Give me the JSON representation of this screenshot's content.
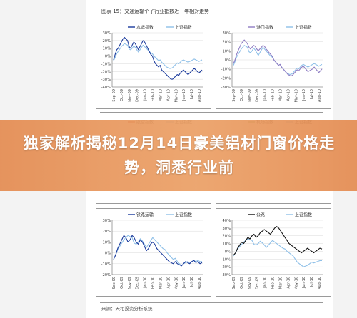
{
  "figure_title": "图表 15：交通运输个子行业指数近一年相对走势",
  "source_text": "来源：天相投资分析系统",
  "headline": "独家解析揭秘12月14日豪美铝材门窗价格走势，洞悉行业前",
  "colors": {
    "benchmark": "#8fc0e8",
    "grid": "#d9d9d9",
    "axis": "#666666"
  },
  "chart_data": [
    {
      "type": "line",
      "yticks": [
        "30%",
        "20%",
        "10%",
        "0%",
        "-10%",
        "-20%",
        "-30%",
        "-40%"
      ],
      "ylim": [
        -40,
        30
      ],
      "xticks": [
        "Sep-09",
        "Oct-09",
        "Nov-09",
        "Dec-09",
        "Jan-10",
        "Feb-10",
        "Mar-10",
        "Apr-10",
        "May-10",
        "Jun-10",
        "Jul-10",
        "Aug-10"
      ],
      "series": [
        {
          "name": "水运指数",
          "color": "#1a3a9c",
          "values": [
            -5,
            2,
            8,
            10,
            14,
            18,
            22,
            24,
            22,
            20,
            12,
            10,
            14,
            18,
            16,
            12,
            8,
            12,
            16,
            20,
            18,
            14,
            10,
            6,
            2,
            0,
            -6,
            -10,
            -12,
            -14,
            -12,
            -18,
            -20,
            -22,
            -24,
            -26,
            -28,
            -30,
            -30,
            -28,
            -26,
            -24,
            -25,
            -22,
            -20,
            -18,
            -20,
            -22,
            -24,
            -22,
            -20,
            -18,
            -16,
            -18,
            -20,
            -22,
            -20,
            -18
          ]
        },
        {
          "name": "上证指数",
          "color": "#8fc0e8",
          "values": [
            -6,
            -2,
            3,
            6,
            9,
            12,
            14,
            16,
            15,
            14,
            9,
            8,
            10,
            13,
            11,
            8,
            5,
            8,
            11,
            14,
            12,
            10,
            8,
            6,
            4,
            3,
            0,
            -2,
            -4,
            -6,
            -5,
            -8,
            -10,
            -12,
            -14,
            -15,
            -16,
            -16,
            -15,
            -13,
            -11,
            -9,
            -10,
            -8,
            -6,
            -5,
            -6,
            -7,
            -8,
            -7,
            -6,
            -5,
            -4,
            -5,
            -6,
            -7,
            -6,
            -5
          ]
        }
      ]
    },
    {
      "type": "line",
      "yticks": [
        "30%",
        "20%",
        "10%",
        "0%",
        "-10%",
        "-20%",
        "-30%"
      ],
      "ylim": [
        -30,
        30
      ],
      "xticks": [
        "Sep-09",
        "Oct-09",
        "Nov-09",
        "Dec-09",
        "Jan-10",
        "Feb-10",
        "Mar-10",
        "Apr-10",
        "May-10",
        "Jun-10",
        "Jul-10",
        "Aug-10"
      ],
      "series": [
        {
          "name": "港口指数",
          "color": "#8e7cc3",
          "values": [
            -4,
            0,
            6,
            10,
            14,
            18,
            20,
            22,
            20,
            18,
            14,
            12,
            14,
            16,
            15,
            12,
            10,
            12,
            14,
            16,
            15,
            12,
            10,
            8,
            6,
            4,
            0,
            -2,
            -4,
            -6,
            -5,
            -8,
            -10,
            -12,
            -14,
            -16,
            -17,
            -18,
            -17,
            -15,
            -13,
            -11,
            -12,
            -10,
            -8,
            -7,
            -9,
            -11,
            -13,
            -12,
            -11,
            -10,
            -8,
            -10,
            -12,
            -14,
            -12,
            -10
          ]
        },
        {
          "name": "上证指数",
          "color": "#8fc0e8",
          "values": [
            -6,
            -2,
            3,
            6,
            9,
            12,
            14,
            16,
            15,
            14,
            9,
            8,
            10,
            13,
            11,
            8,
            5,
            8,
            11,
            14,
            12,
            10,
            8,
            6,
            4,
            3,
            0,
            -2,
            -4,
            -6,
            -5,
            -8,
            -10,
            -12,
            -14,
            -15,
            -16,
            -16,
            -15,
            -13,
            -11,
            -9,
            -10,
            -8,
            -6,
            -5,
            -6,
            -7,
            -8,
            -7,
            -6,
            -5,
            -4,
            -5,
            -6,
            -7,
            -6,
            -5
          ]
        }
      ]
    },
    {
      "type": "line",
      "series": [
        {
          "name": "航空指数",
          "color": "#c0392b",
          "values": []
        },
        {
          "name": "上证指数",
          "color": "#8fc0e8",
          "values": []
        }
      ]
    },
    {
      "type": "line",
      "series": [
        {
          "name": "机场指数",
          "color": "#6aa84f",
          "values": []
        },
        {
          "name": "上证指数",
          "color": "#8fc0e8",
          "values": []
        }
      ]
    },
    {
      "type": "line",
      "yticks": [
        "30%",
        "20%",
        "10%",
        "0%",
        "-10%",
        "-20%"
      ],
      "ylim": [
        -20,
        30
      ],
      "xticks": [
        "Sep-09",
        "Oct-09",
        "Nov-09",
        "Dec-09",
        "Jan-10",
        "Feb-10",
        "Mar-10",
        "Apr-10",
        "May-10",
        "Jun-10",
        "Jul-10",
        "Aug-10"
      ],
      "series": [
        {
          "name": "铁路运输",
          "color": "#1a3a9c",
          "values": [
            -6,
            -2,
            4,
            8,
            12,
            16,
            14,
            10,
            12,
            16,
            14,
            10,
            8,
            12,
            10,
            6,
            2,
            4,
            8,
            10,
            8,
            4,
            2,
            0,
            -2,
            -4,
            -6,
            -8,
            -9,
            -10,
            -8,
            -10,
            -11,
            -12,
            -10,
            -8,
            -9,
            -10,
            -8,
            -7,
            -9,
            -8,
            -10,
            -9
          ]
        },
        {
          "name": "上证指数",
          "color": "#8fc0e8",
          "values": [
            -6,
            -2,
            3,
            6,
            9,
            12,
            14,
            16,
            15,
            14,
            9,
            8,
            10,
            13,
            11,
            8,
            5,
            8,
            11,
            14,
            12,
            10,
            8,
            6,
            4,
            3,
            0,
            -2,
            -4,
            -6,
            -5,
            -8,
            -10,
            -12,
            -10,
            -9,
            -8,
            -9,
            -8,
            -7,
            -8,
            -7,
            -8,
            -8
          ]
        }
      ]
    },
    {
      "type": "line",
      "yticks": [
        "40%",
        "30%",
        "20%",
        "10%",
        "0%",
        "-10%",
        "-20%",
        "-30%"
      ],
      "ylim": [
        -30,
        40
      ],
      "xticks": [
        "Sep-09",
        "Oct-09",
        "Nov-09",
        "Dec-09",
        "Jan-10",
        "Feb-10",
        "Mar-10",
        "Apr-10",
        "May-10",
        "Jun-10",
        "Jul-10",
        "Aug-10"
      ],
      "series": [
        {
          "name": "公路",
          "color": "#111111",
          "values": [
            -5,
            -2,
            4,
            8,
            12,
            10,
            14,
            18,
            16,
            20,
            22,
            18,
            20,
            24,
            26,
            28,
            26,
            24,
            22,
            26,
            30,
            32,
            30,
            26,
            22,
            18,
            14,
            10,
            8,
            6,
            4,
            2,
            0,
            -2,
            0,
            2,
            4,
            2,
            0,
            -2,
            0,
            2,
            4,
            3
          ]
        },
        {
          "name": "上证指数",
          "color": "#8fc0e8",
          "values": [
            -6,
            -2,
            3,
            6,
            9,
            12,
            14,
            16,
            15,
            14,
            9,
            8,
            10,
            13,
            11,
            8,
            5,
            8,
            11,
            14,
            12,
            10,
            8,
            6,
            4,
            3,
            0,
            -2,
            -4,
            -6,
            -10,
            -14,
            -16,
            -18,
            -20,
            -19,
            -18,
            -16,
            -14,
            -15,
            -14,
            -13,
            -12,
            -12
          ]
        }
      ]
    }
  ]
}
